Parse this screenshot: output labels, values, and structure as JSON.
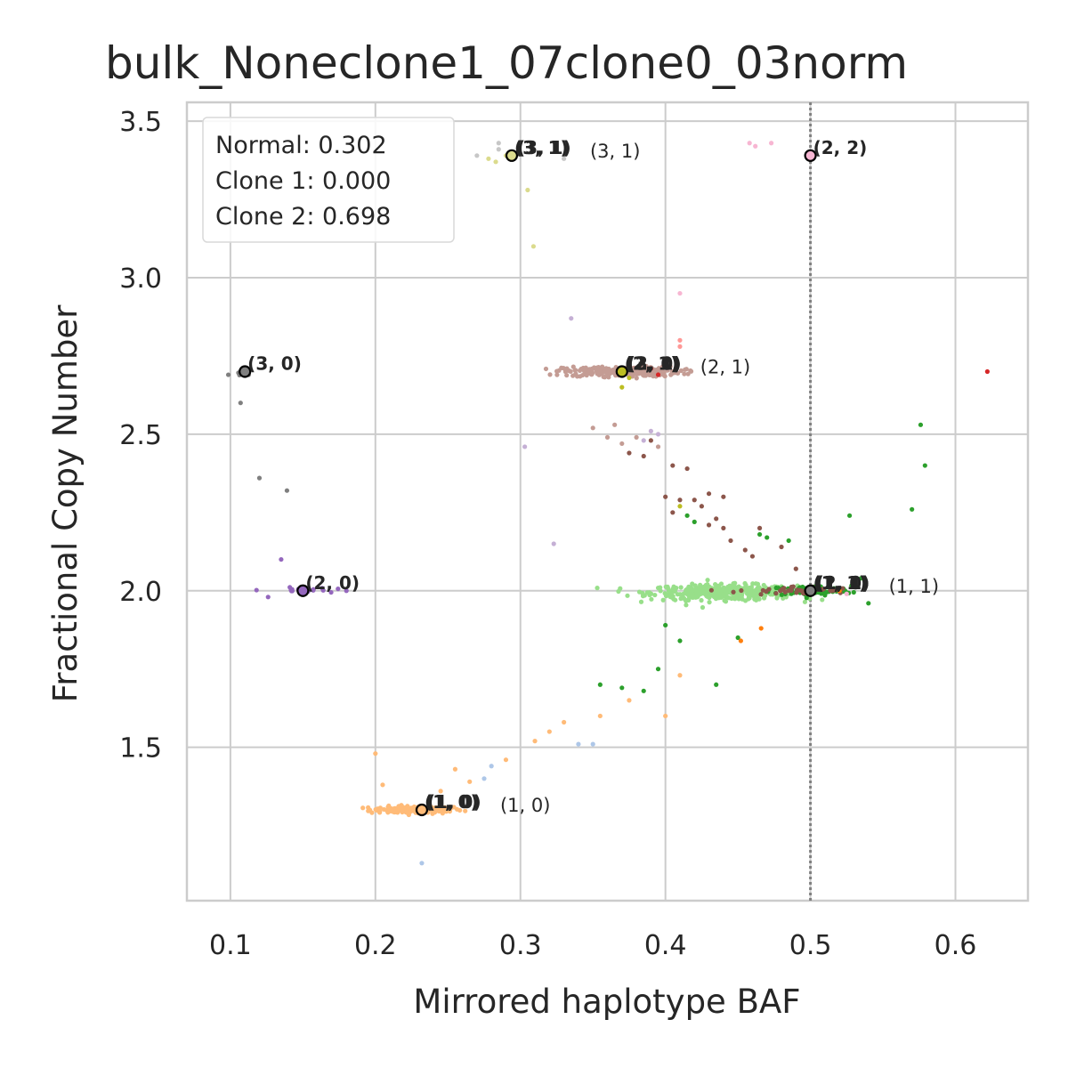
{
  "chart_data": {
    "type": "scatter",
    "title": "bulk_Noneclone1_07clone0_03norm",
    "xlabel": "Mirrored haplotype BAF",
    "ylabel": "Fractional Copy Number",
    "xlim": [
      0.07,
      0.65
    ],
    "ylim": [
      1.01,
      3.56
    ],
    "xticks": [
      0.1,
      0.2,
      0.3,
      0.4,
      0.5,
      0.6
    ],
    "xtick_labels": [
      "0.1",
      "0.2",
      "0.3",
      "0.4",
      "0.5",
      "0.6"
    ],
    "yticks": [
      1.5,
      2.0,
      2.5,
      3.0,
      3.5
    ],
    "ytick_labels": [
      "1.5",
      "2.0",
      "2.5",
      "3.0",
      "3.5"
    ],
    "grid": true,
    "vline_x": 0.5,
    "legend": {
      "placement": "upper-left",
      "lines": [
        "Normal: 0.302",
        "Clone 1: 0.000",
        "Clone 2: 0.698"
      ]
    },
    "clusters": [
      {
        "color": "#ffbb78",
        "cx": 0.228,
        "cy": 1.3,
        "sx": 0.016,
        "sy": 0.006,
        "n": 150
      },
      {
        "color": "#98df8a",
        "cx": 0.44,
        "cy": 1.995,
        "sx": 0.025,
        "sy": 0.012,
        "n": 420
      },
      {
        "color": "#2ca02c",
        "cx": 0.5,
        "cy": 2.0,
        "sx": 0.014,
        "sy": 0.008,
        "n": 90
      },
      {
        "color": "#8c564b",
        "cx": 0.49,
        "cy": 2.0,
        "sx": 0.02,
        "sy": 0.007,
        "n": 40
      },
      {
        "color": "#c49c94",
        "cx": 0.37,
        "cy": 2.7,
        "sx": 0.02,
        "sy": 0.008,
        "n": 260
      },
      {
        "color": "#9467bd",
        "cx": 0.148,
        "cy": 2.0,
        "sx": 0.01,
        "sy": 0.005,
        "n": 22
      },
      {
        "color": "#7f7f7f",
        "cx": 0.105,
        "cy": 2.69,
        "sx": 0.005,
        "sy": 0.004,
        "n": 7
      }
    ],
    "scattered_points": [
      {
        "x": 0.2,
        "y": 1.48,
        "color": "#ffbb78"
      },
      {
        "x": 0.205,
        "y": 1.38,
        "color": "#ffbb78"
      },
      {
        "x": 0.255,
        "y": 1.43,
        "color": "#ffbb78"
      },
      {
        "x": 0.265,
        "y": 1.39,
        "color": "#ffbb78"
      },
      {
        "x": 0.29,
        "y": 1.46,
        "color": "#ffbb78"
      },
      {
        "x": 0.31,
        "y": 1.52,
        "color": "#ffbb78"
      },
      {
        "x": 0.32,
        "y": 1.55,
        "color": "#ffbb78"
      },
      {
        "x": 0.33,
        "y": 1.58,
        "color": "#ffbb78"
      },
      {
        "x": 0.355,
        "y": 1.6,
        "color": "#ffbb78"
      },
      {
        "x": 0.375,
        "y": 1.65,
        "color": "#ffbb78"
      },
      {
        "x": 0.4,
        "y": 1.6,
        "color": "#ffbb78"
      },
      {
        "x": 0.41,
        "y": 1.73,
        "color": "#ffbb78"
      },
      {
        "x": 0.245,
        "y": 1.36,
        "color": "#ffbb78"
      },
      {
        "x": 0.28,
        "y": 1.44,
        "color": "#aec7e8"
      },
      {
        "x": 0.34,
        "y": 1.51,
        "color": "#aec7e8"
      },
      {
        "x": 0.35,
        "y": 1.51,
        "color": "#aec7e8"
      },
      {
        "x": 0.232,
        "y": 1.13,
        "color": "#aec7e8"
      },
      {
        "x": 0.275,
        "y": 1.4,
        "color": "#aec7e8"
      },
      {
        "x": 0.37,
        "y": 1.69,
        "color": "#2ca02c"
      },
      {
        "x": 0.385,
        "y": 1.68,
        "color": "#2ca02c"
      },
      {
        "x": 0.395,
        "y": 1.75,
        "color": "#2ca02c"
      },
      {
        "x": 0.4,
        "y": 1.89,
        "color": "#2ca02c"
      },
      {
        "x": 0.41,
        "y": 1.84,
        "color": "#2ca02c"
      },
      {
        "x": 0.42,
        "y": 2.22,
        "color": "#2ca02c"
      },
      {
        "x": 0.415,
        "y": 2.24,
        "color": "#2ca02c"
      },
      {
        "x": 0.435,
        "y": 1.7,
        "color": "#2ca02c"
      },
      {
        "x": 0.355,
        "y": 1.7,
        "color": "#2ca02c"
      },
      {
        "x": 0.45,
        "y": 1.85,
        "color": "#2ca02c"
      },
      {
        "x": 0.465,
        "y": 2.18,
        "color": "#2ca02c"
      },
      {
        "x": 0.47,
        "y": 2.17,
        "color": "#2ca02c"
      },
      {
        "x": 0.485,
        "y": 2.16,
        "color": "#2ca02c"
      },
      {
        "x": 0.527,
        "y": 2.24,
        "color": "#2ca02c"
      },
      {
        "x": 0.57,
        "y": 2.26,
        "color": "#2ca02c"
      },
      {
        "x": 0.576,
        "y": 2.53,
        "color": "#2ca02c"
      },
      {
        "x": 0.579,
        "y": 2.4,
        "color": "#2ca02c"
      },
      {
        "x": 0.535,
        "y": 2.04,
        "color": "#2ca02c"
      },
      {
        "x": 0.54,
        "y": 1.96,
        "color": "#2ca02c"
      },
      {
        "x": 0.452,
        "y": 1.84,
        "color": "#ff7f0e"
      },
      {
        "x": 0.466,
        "y": 1.88,
        "color": "#ff7f0e"
      },
      {
        "x": 0.52,
        "y": 2.0,
        "color": "#ff7f0e"
      },
      {
        "x": 0.4,
        "y": 2.3,
        "color": "#8c564b"
      },
      {
        "x": 0.41,
        "y": 2.29,
        "color": "#8c564b"
      },
      {
        "x": 0.405,
        "y": 2.25,
        "color": "#8c564b"
      },
      {
        "x": 0.42,
        "y": 2.29,
        "color": "#8c564b"
      },
      {
        "x": 0.425,
        "y": 2.27,
        "color": "#8c564b"
      },
      {
        "x": 0.43,
        "y": 2.31,
        "color": "#8c564b"
      },
      {
        "x": 0.44,
        "y": 2.3,
        "color": "#8c564b"
      },
      {
        "x": 0.44,
        "y": 2.2,
        "color": "#8c564b"
      },
      {
        "x": 0.445,
        "y": 2.16,
        "color": "#8c564b"
      },
      {
        "x": 0.455,
        "y": 2.13,
        "color": "#8c564b"
      },
      {
        "x": 0.46,
        "y": 2.11,
        "color": "#8c564b"
      },
      {
        "x": 0.43,
        "y": 2.21,
        "color": "#8c564b"
      },
      {
        "x": 0.435,
        "y": 2.23,
        "color": "#8c564b"
      },
      {
        "x": 0.39,
        "y": 2.48,
        "color": "#8c564b"
      },
      {
        "x": 0.385,
        "y": 2.43,
        "color": "#8c564b"
      },
      {
        "x": 0.405,
        "y": 2.4,
        "color": "#8c564b"
      },
      {
        "x": 0.415,
        "y": 2.39,
        "color": "#8c564b"
      },
      {
        "x": 0.375,
        "y": 2.44,
        "color": "#8c564b"
      },
      {
        "x": 0.465,
        "y": 2.2,
        "color": "#8c564b"
      },
      {
        "x": 0.48,
        "y": 2.14,
        "color": "#8c564b"
      },
      {
        "x": 0.49,
        "y": 2.07,
        "color": "#8c564b"
      },
      {
        "x": 0.35,
        "y": 2.52,
        "color": "#c49c94"
      },
      {
        "x": 0.36,
        "y": 2.49,
        "color": "#c49c94"
      },
      {
        "x": 0.38,
        "y": 2.49,
        "color": "#c49c94"
      },
      {
        "x": 0.395,
        "y": 2.46,
        "color": "#c49c94"
      },
      {
        "x": 0.37,
        "y": 2.47,
        "color": "#c49c94"
      },
      {
        "x": 0.365,
        "y": 2.53,
        "color": "#c49c94"
      },
      {
        "x": 0.41,
        "y": 2.78,
        "color": "#ff9896"
      },
      {
        "x": 0.41,
        "y": 2.8,
        "color": "#ff9896"
      },
      {
        "x": 0.39,
        "y": 2.71,
        "color": "#d62728"
      },
      {
        "x": 0.395,
        "y": 2.69,
        "color": "#d62728"
      },
      {
        "x": 0.622,
        "y": 2.7,
        "color": "#d62728"
      },
      {
        "x": 0.335,
        "y": 2.87,
        "color": "#c5b0d5"
      },
      {
        "x": 0.41,
        "y": 2.95,
        "color": "#f7b6d2"
      },
      {
        "x": 0.303,
        "y": 2.46,
        "color": "#c5b0d5"
      },
      {
        "x": 0.385,
        "y": 2.48,
        "color": "#c5b0d5"
      },
      {
        "x": 0.39,
        "y": 2.51,
        "color": "#c5b0d5"
      },
      {
        "x": 0.395,
        "y": 2.5,
        "color": "#c5b0d5"
      },
      {
        "x": 0.323,
        "y": 2.15,
        "color": "#c5b0d5"
      },
      {
        "x": 0.37,
        "y": 2.65,
        "color": "#bcbd22"
      },
      {
        "x": 0.41,
        "y": 2.27,
        "color": "#bcbd22"
      },
      {
        "x": 0.375,
        "y": 2.68,
        "color": "#bcbd22"
      },
      {
        "x": 0.135,
        "y": 2.1,
        "color": "#9467bd"
      },
      {
        "x": 0.126,
        "y": 1.98,
        "color": "#9467bd"
      },
      {
        "x": 0.18,
        "y": 2.0,
        "color": "#9467bd"
      },
      {
        "x": 0.107,
        "y": 2.6,
        "color": "#7f7f7f"
      },
      {
        "x": 0.12,
        "y": 2.36,
        "color": "#7f7f7f"
      },
      {
        "x": 0.139,
        "y": 2.32,
        "color": "#7f7f7f"
      },
      {
        "x": 0.298,
        "y": 3.4,
        "color": "#c7c7c7"
      },
      {
        "x": 0.27,
        "y": 3.39,
        "color": "#c7c7c7"
      },
      {
        "x": 0.285,
        "y": 3.43,
        "color": "#c7c7c7"
      },
      {
        "x": 0.33,
        "y": 3.38,
        "color": "#c7c7c7"
      },
      {
        "x": 0.285,
        "y": 3.41,
        "color": "#c7c7c7"
      },
      {
        "x": 0.278,
        "y": 3.38,
        "color": "#dbdb8d"
      },
      {
        "x": 0.283,
        "y": 3.37,
        "color": "#dbdb8d"
      },
      {
        "x": 0.29,
        "y": 3.39,
        "color": "#dbdb8d"
      },
      {
        "x": 0.305,
        "y": 3.28,
        "color": "#dbdb8d"
      },
      {
        "x": 0.309,
        "y": 3.1,
        "color": "#dbdb8d"
      },
      {
        "x": 0.458,
        "y": 3.43,
        "color": "#f7b6d2"
      },
      {
        "x": 0.462,
        "y": 3.42,
        "color": "#f7b6d2"
      },
      {
        "x": 0.473,
        "y": 3.43,
        "color": "#f7b6d2"
      },
      {
        "x": 0.525,
        "y": 1.99,
        "color": "#f7b6d2"
      }
    ],
    "state_markers": [
      {
        "x": 0.232,
        "y": 1.3,
        "fill": "#ffbb78",
        "bold_label": "(1, 0)",
        "plain_label": "(1, 0)"
      },
      {
        "x": 0.5,
        "y": 2.0,
        "fill": "#7f7f7f",
        "bold_label": "(1, 1)",
        "plain_label": "(1, 1)"
      },
      {
        "x": 0.37,
        "y": 2.7,
        "fill": "#bcbd22",
        "bold_label": "(2, 1)",
        "plain_label": "(2, 1)"
      },
      {
        "x": 0.15,
        "y": 2.0,
        "fill": "#9467bd",
        "bold_label": "(2, 0)",
        "plain_label": ""
      },
      {
        "x": 0.11,
        "y": 2.7,
        "fill": "#7f7f7f",
        "bold_label": "(3, 0)",
        "plain_label": ""
      },
      {
        "x": 0.294,
        "y": 3.39,
        "fill": "#dbdb8d",
        "bold_label": "(3, 1)",
        "plain_label": "(3, 1)"
      },
      {
        "x": 0.5,
        "y": 3.39,
        "fill": "#f7b6d2",
        "bold_label": "(2, 2)",
        "plain_label": ""
      }
    ],
    "overlap_labels": [
      {
        "x": 0.232,
        "y": 1.3,
        "text": "(1, 0)"
      },
      {
        "x": 0.5,
        "y": 2.0,
        "text": "(2, 0)"
      },
      {
        "x": 0.5,
        "y": 2.0,
        "text": "(1, 1)"
      },
      {
        "x": 0.37,
        "y": 2.7,
        "text": "(2, 1)"
      },
      {
        "x": 0.37,
        "y": 2.7,
        "text": "(3, 0)"
      },
      {
        "x": 0.294,
        "y": 3.39,
        "text": "(3, 1)"
      }
    ]
  }
}
